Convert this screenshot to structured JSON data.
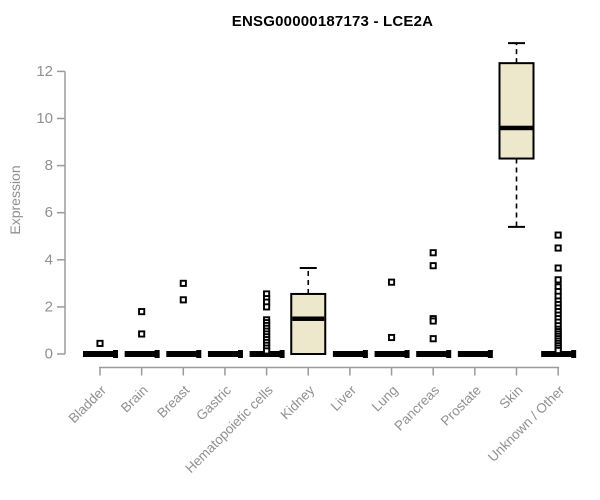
{
  "chart_data": {
    "type": "boxplot",
    "title": "ENSG00000187173 - LCE2A",
    "xlabel": "",
    "ylabel": "Expression",
    "ylim": [
      0,
      13.3
    ],
    "yticks": [
      0,
      2,
      4,
      6,
      8,
      10,
      12
    ],
    "grid": false,
    "legend": "none",
    "categories": [
      "Bladder",
      "Brain",
      "Breast",
      "Gastric",
      "Hematopoietic cells",
      "Kidney",
      "Liver",
      "Lung",
      "Pancreas",
      "Prostate",
      "Skin",
      "Unknown / Other"
    ],
    "boxes": [
      {
        "category": "Bladder",
        "whisker_low": 0,
        "q1": 0,
        "median": 0,
        "q3": 0,
        "whisker_high": 0,
        "outliers": [
          0.45
        ]
      },
      {
        "category": "Brain",
        "whisker_low": 0,
        "q1": 0,
        "median": 0,
        "q3": 0,
        "whisker_high": 0,
        "outliers": [
          1.8,
          0.85
        ]
      },
      {
        "category": "Breast",
        "whisker_low": 0,
        "q1": 0,
        "median": 0,
        "q3": 0,
        "whisker_high": 0,
        "outliers": [
          3.0,
          2.3
        ]
      },
      {
        "category": "Gastric",
        "whisker_low": 0,
        "q1": 0,
        "median": 0,
        "q3": 0,
        "whisker_high": 0,
        "outliers": []
      },
      {
        "category": "Hematopoietic cells",
        "whisker_low": 0,
        "q1": 0,
        "median": 0,
        "q3": 0,
        "whisker_high": 0,
        "outliers": [
          2.55,
          2.35,
          2.2,
          2.0,
          1.45,
          1.33,
          1.21,
          1.09,
          0.97,
          0.85,
          0.73,
          0.61,
          0.49,
          0.37,
          0.25,
          0.13
        ]
      },
      {
        "category": "Kidney",
        "whisker_low": 0,
        "q1": 0,
        "median": 1.5,
        "q3": 2.55,
        "whisker_high": 3.65,
        "outliers": []
      },
      {
        "category": "Liver",
        "whisker_low": 0,
        "q1": 0,
        "median": 0,
        "q3": 0,
        "whisker_high": 0,
        "outliers": []
      },
      {
        "category": "Lung",
        "whisker_low": 0,
        "q1": 0,
        "median": 0,
        "q3": 0,
        "whisker_high": 0,
        "outliers": [
          3.05,
          0.7
        ]
      },
      {
        "category": "Pancreas",
        "whisker_low": 0,
        "q1": 0,
        "median": 0,
        "q3": 0,
        "whisker_high": 0,
        "outliers": [
          4.3,
          3.75,
          1.5,
          1.4,
          0.65
        ]
      },
      {
        "category": "Prostate",
        "whisker_low": 0,
        "q1": 0,
        "median": 0,
        "q3": 0,
        "whisker_high": 0,
        "outliers": []
      },
      {
        "category": "Skin",
        "whisker_low": 5.4,
        "q1": 8.3,
        "median": 9.6,
        "q3": 12.35,
        "whisker_high": 13.2,
        "outliers": []
      },
      {
        "category": "Unknown / Other",
        "whisker_low": 0,
        "q1": 0,
        "median": 0,
        "q3": 0,
        "whisker_high": 0,
        "outliers": [
          5.05,
          4.5,
          3.65,
          3.15,
          2.85,
          2.65,
          2.45,
          2.25,
          2.1,
          1.95,
          1.8,
          1.65,
          1.5,
          1.35,
          1.2,
          1.05,
          0.95,
          0.85,
          0.75,
          0.65,
          0.55,
          0.45,
          0.35,
          0.25,
          0.15
        ]
      }
    ],
    "colors": {
      "box_fill": "#EDE7CB",
      "box_stroke": "#000000",
      "median": "#000000",
      "outlier_stroke": "#000000",
      "outlier_fill": "#FFFFFF",
      "axis_line": "#9B9B9B",
      "axis_text": "#909090",
      "title_text": "#000000",
      "background": "#FFFFFF"
    }
  }
}
